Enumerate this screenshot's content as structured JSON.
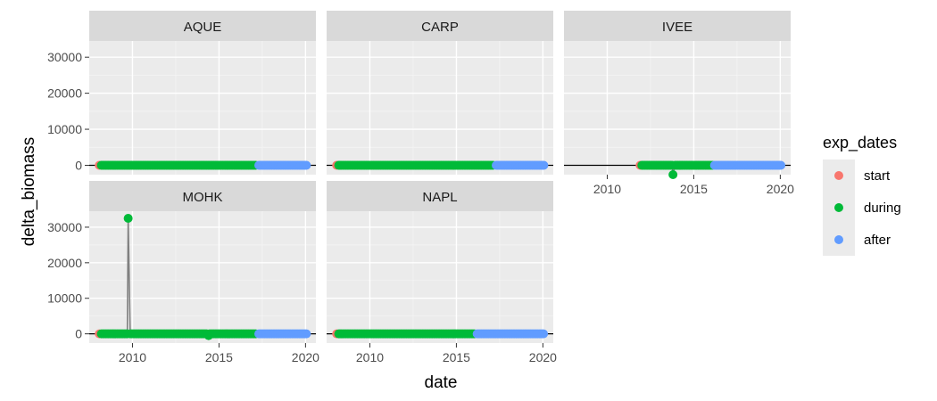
{
  "chart_data": {
    "type": "scatter",
    "facet_variable": "site",
    "xlabel": "date",
    "ylabel": "delta_biomass",
    "xlim": [
      2007.5,
      2020.6
    ],
    "ylim": [
      -2600,
      34500
    ],
    "x_ticks": [
      2010,
      2015,
      2020
    ],
    "y_ticks": [
      0,
      10000,
      20000,
      30000
    ],
    "x_tick_labels": [
      "2010",
      "2015",
      "2020"
    ],
    "y_tick_labels": [
      "0",
      "10000",
      "20000",
      "30000"
    ],
    "grid": true,
    "hline_y": 0,
    "legend": {
      "title": "exp_dates",
      "position": "right",
      "entries": [
        {
          "label": "start",
          "color": "#F8766D"
        },
        {
          "label": "during",
          "color": "#00BA38"
        },
        {
          "label": "after",
          "color": "#619CFF"
        }
      ]
    },
    "facets": [
      {
        "name": "AQUE",
        "start": [
          2008.08
        ],
        "during_range": [
          2008.2,
          2017.2
        ],
        "after_range": [
          2017.3,
          2020.1
        ],
        "spikes": []
      },
      {
        "name": "CARP",
        "start": [
          2008.08
        ],
        "during_range": [
          2008.2,
          2017.2
        ],
        "after_range": [
          2017.3,
          2020.1
        ],
        "spikes": []
      },
      {
        "name": "IVEE",
        "start": [
          2011.9
        ],
        "during_range": [
          2012.0,
          2016.1
        ],
        "after_range": [
          2016.2,
          2020.1
        ],
        "spikes": [
          {
            "x": 2013.8,
            "y": -2600
          }
        ]
      },
      {
        "name": "MOHK",
        "start": [
          2008.08
        ],
        "during_range": [
          2008.2,
          2017.2
        ],
        "after_range": [
          2017.3,
          2020.1
        ],
        "spikes": [
          {
            "x": 2009.75,
            "y": 32500
          },
          {
            "x": 2014.4,
            "y": -500
          }
        ]
      },
      {
        "name": "NAPL",
        "start": [
          2008.08
        ],
        "during_range": [
          2008.2,
          2016.1
        ],
        "after_range": [
          2016.2,
          2020.1
        ],
        "spikes": []
      }
    ]
  }
}
